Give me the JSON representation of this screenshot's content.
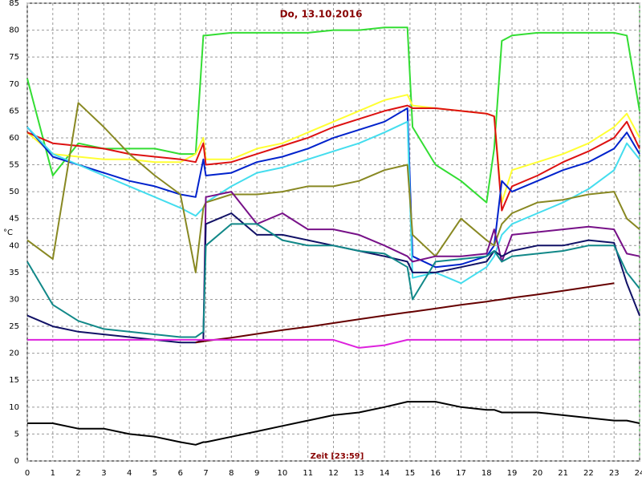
{
  "chart_data": {
    "type": "line",
    "title": "Do, 13.10.2016",
    "x_label": "Zeit [23:59]",
    "y_label": "°C",
    "x": [
      0,
      1,
      2,
      3,
      4,
      5,
      6,
      6.6,
      6.9,
      7,
      8,
      9,
      10,
      11,
      12,
      13,
      14,
      14.9,
      15.1,
      16,
      17,
      18,
      18.3,
      18.6,
      19,
      20,
      21,
      22,
      23,
      23.5,
      24
    ],
    "xlim": [
      0,
      24
    ],
    "xticks": [
      0,
      1,
      2,
      3,
      4,
      5,
      6,
      7,
      8,
      9,
      10,
      11,
      12,
      13,
      14,
      15,
      16,
      17,
      18,
      19,
      20,
      21,
      22,
      23,
      24
    ],
    "ylim": [
      0,
      85
    ],
    "yticks": [
      0,
      5,
      10,
      15,
      20,
      25,
      30,
      35,
      40,
      45,
      50,
      55,
      60,
      65,
      70,
      75,
      80,
      85
    ],
    "grid": true,
    "series": [
      {
        "color": "#33dd33",
        "values": [
          71,
          53,
          59,
          58,
          58,
          58,
          57,
          57,
          79,
          79,
          79.5,
          79.5,
          79.5,
          79.5,
          80,
          80,
          80.5,
          80.5,
          62,
          55,
          52,
          48,
          58,
          78,
          79,
          79.5,
          79.5,
          79.5,
          79.5,
          79,
          65
        ]
      },
      {
        "color": "#ffff33",
        "values": [
          61,
          57,
          56.5,
          56,
          56,
          55.5,
          55.5,
          57,
          60,
          56,
          56,
          58,
          59,
          61,
          63,
          65,
          67,
          68,
          66,
          65.5,
          65,
          64.5,
          64,
          48,
          54,
          55.5,
          57,
          59,
          62,
          64.5,
          60
        ]
      },
      {
        "color": "#dd1111",
        "values": [
          61,
          59,
          58.5,
          58,
          57,
          56.5,
          56,
          55.5,
          59,
          55,
          55.5,
          57,
          58.5,
          60,
          62,
          63.5,
          65,
          66,
          65.5,
          65.5,
          65,
          64.5,
          64,
          46.5,
          51,
          53,
          55.5,
          57.5,
          60,
          63,
          58
        ]
      },
      {
        "color": "#0022cc",
        "values": [
          62,
          56.5,
          55,
          53.5,
          52,
          51,
          49.5,
          49,
          56,
          53,
          53.5,
          55.5,
          56.5,
          58,
          60,
          61.5,
          63,
          65.5,
          38,
          36,
          36.5,
          38,
          40,
          52,
          50,
          52,
          54,
          55.5,
          58,
          61,
          57
        ]
      },
      {
        "color": "#44ddee",
        "values": [
          62,
          57,
          55,
          53,
          51,
          49,
          47,
          45.5,
          47,
          48,
          51,
          53.5,
          54.5,
          56,
          57.5,
          59,
          61,
          63,
          34,
          35,
          33,
          36,
          38,
          42,
          44,
          46,
          48,
          50.5,
          54,
          59,
          56
        ]
      },
      {
        "color": "#888822",
        "values": [
          41,
          37.5,
          66.5,
          62,
          57,
          53,
          49.5,
          35,
          47,
          48,
          49.5,
          49.5,
          50,
          51,
          51,
          52,
          54,
          55,
          42,
          38,
          45,
          41,
          40,
          44,
          46,
          48,
          48.5,
          49.5,
          50,
          45,
          43
        ]
      },
      {
        "color": "#771188",
        "values": [
          null,
          null,
          null,
          null,
          null,
          null,
          null,
          null,
          23,
          49,
          50,
          44,
          46,
          43,
          43,
          42,
          40,
          38,
          37,
          38,
          38,
          38.5,
          43,
          37,
          42,
          42.5,
          43,
          43.5,
          43,
          38.5,
          38
        ]
      },
      {
        "color": "#111166",
        "values": [
          27,
          25,
          24,
          23.5,
          23,
          22.5,
          22,
          22,
          22.5,
          44,
          46,
          42,
          42,
          41,
          40,
          39,
          38,
          37,
          35,
          35,
          36,
          37,
          39,
          38,
          39,
          40,
          40,
          41,
          40.5,
          33,
          27
        ]
      },
      {
        "color": "#118888",
        "values": [
          37,
          29,
          26,
          24.5,
          24,
          23.5,
          23,
          23,
          24,
          40,
          44,
          44,
          41,
          40,
          40,
          39,
          38.5,
          36,
          30,
          37,
          37.5,
          38,
          39,
          37,
          38,
          38.5,
          39,
          40,
          40,
          35,
          32
        ]
      },
      {
        "color": "#660000",
        "values": [
          null,
          null,
          null,
          null,
          null,
          null,
          null,
          22,
          22.2,
          22.3,
          22.9,
          23.6,
          24.3,
          24.9,
          25.6,
          26.3,
          27,
          27.6,
          27.7,
          28.3,
          29,
          29.6,
          29.8,
          30,
          30.3,
          30.9,
          31.6,
          32.3,
          33,
          null,
          null
        ]
      },
      {
        "color": "#dd22dd",
        "values": [
          22.5,
          22.5,
          22.5,
          22.5,
          22.5,
          22.5,
          22.5,
          22.5,
          22.5,
          22.5,
          22.5,
          22.5,
          22.5,
          22.5,
          22.5,
          21,
          21.5,
          22.5,
          22.5,
          22.5,
          22.5,
          22.5,
          22.5,
          22.5,
          22.5,
          22.5,
          22.5,
          22.5,
          22.5,
          22.5,
          22.5
        ]
      },
      {
        "color": "#000000",
        "values": [
          7,
          7,
          6,
          6,
          5,
          4.5,
          3.5,
          3,
          3.5,
          3.5,
          4.5,
          5.5,
          6.5,
          7.5,
          8.5,
          9,
          10,
          11,
          11,
          11,
          10,
          9.5,
          9.5,
          9,
          9,
          9,
          8.5,
          8,
          7.5,
          7.5,
          7
        ]
      }
    ]
  }
}
